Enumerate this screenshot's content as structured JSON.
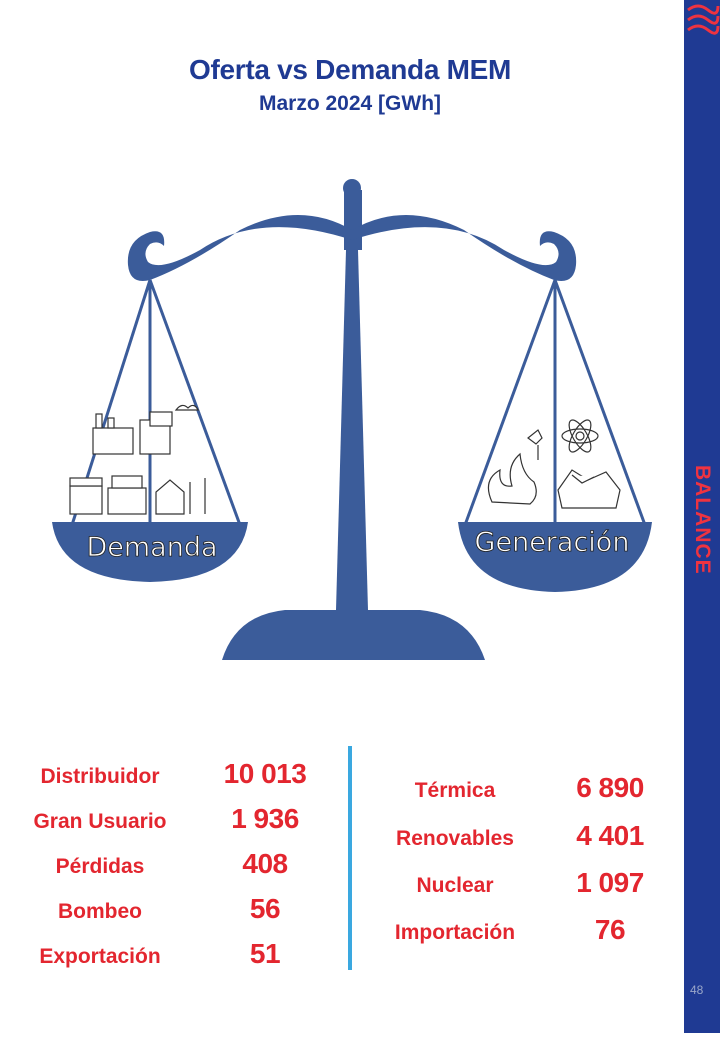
{
  "header": {
    "title": "Oferta vs Demanda MEM",
    "subtitle": "Marzo 2024 [GWh]"
  },
  "scale": {
    "left_pan_label": "Demanda",
    "right_pan_label": "Generación"
  },
  "side_tab": {
    "label": "BALANCE"
  },
  "demand": [
    {
      "label": "Distribuidor",
      "value": "10 013"
    },
    {
      "label": "Gran Usuario",
      "value": "1 936"
    },
    {
      "label": "Pérdidas",
      "value": "408"
    },
    {
      "label": "Bombeo",
      "value": "56"
    },
    {
      "label": "Exportación",
      "value": "51"
    }
  ],
  "generation": [
    {
      "label": "Térmica",
      "value": "6 890"
    },
    {
      "label": "Renovables",
      "value": "4 401"
    },
    {
      "label": "Nuclear",
      "value": "1 097"
    },
    {
      "label": "Importación",
      "value": "76"
    }
  ],
  "page": {
    "number": "48"
  },
  "colors": {
    "brand_blue": "#1f3a93",
    "scale_blue": "#3b5c9a",
    "accent_red": "#e3262f",
    "divider_blue": "#3aa8e0"
  }
}
